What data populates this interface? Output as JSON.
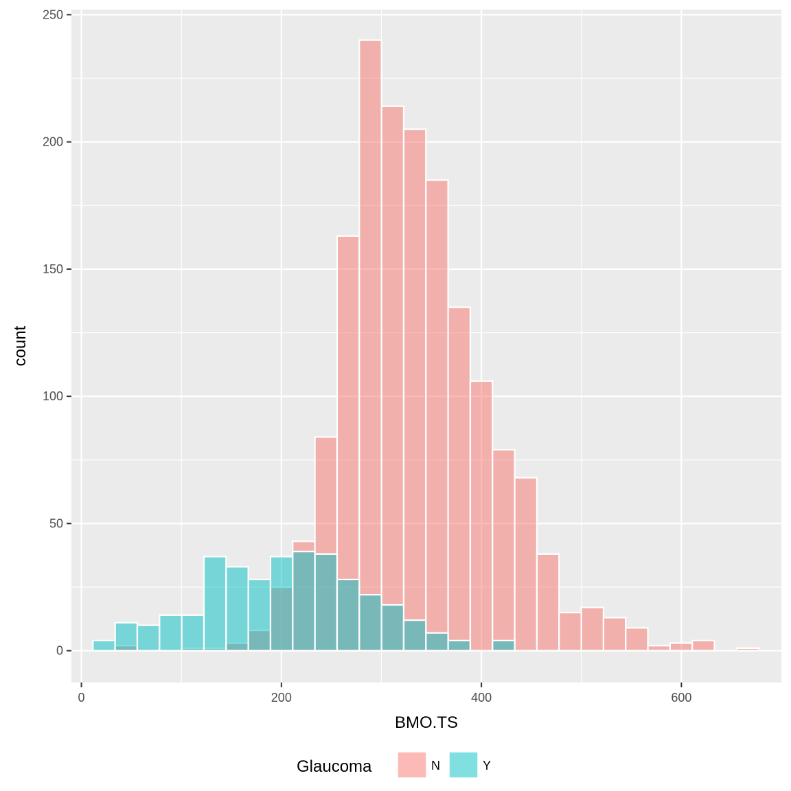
{
  "chart_data": {
    "type": "bar",
    "subtype": "histogram-overlapping",
    "title": "",
    "xlabel": "BMO.TS",
    "ylabel": "count",
    "xlim": [
      -10,
      700
    ],
    "ylim": [
      -12.5,
      252
    ],
    "x_ticks": [
      0,
      200,
      400,
      600
    ],
    "y_ticks": [
      0,
      50,
      100,
      150,
      200,
      250
    ],
    "grid": true,
    "bin_start": 11.5,
    "bin_width": 22.2,
    "legend": {
      "title": "Glaucoma",
      "position": "bottom",
      "entries": [
        "N",
        "Y"
      ]
    },
    "series": [
      {
        "name": "N",
        "color": "#F8766D",
        "opacity": 0.5,
        "values": [
          0,
          2,
          0,
          0,
          1,
          1,
          3,
          8,
          25,
          43,
          84,
          163,
          240,
          214,
          205,
          185,
          135,
          106,
          79,
          68,
          38,
          15,
          17,
          13,
          9,
          2,
          3,
          4,
          0,
          1
        ]
      },
      {
        "name": "Y",
        "color": "#00BFC4",
        "opacity": 0.5,
        "values": [
          4,
          11,
          10,
          14,
          14,
          37,
          33,
          28,
          37,
          39,
          38,
          28,
          22,
          18,
          12,
          7,
          4,
          0,
          4,
          0,
          0,
          0,
          0,
          0,
          0,
          0,
          0,
          0,
          0,
          0
        ]
      }
    ]
  }
}
